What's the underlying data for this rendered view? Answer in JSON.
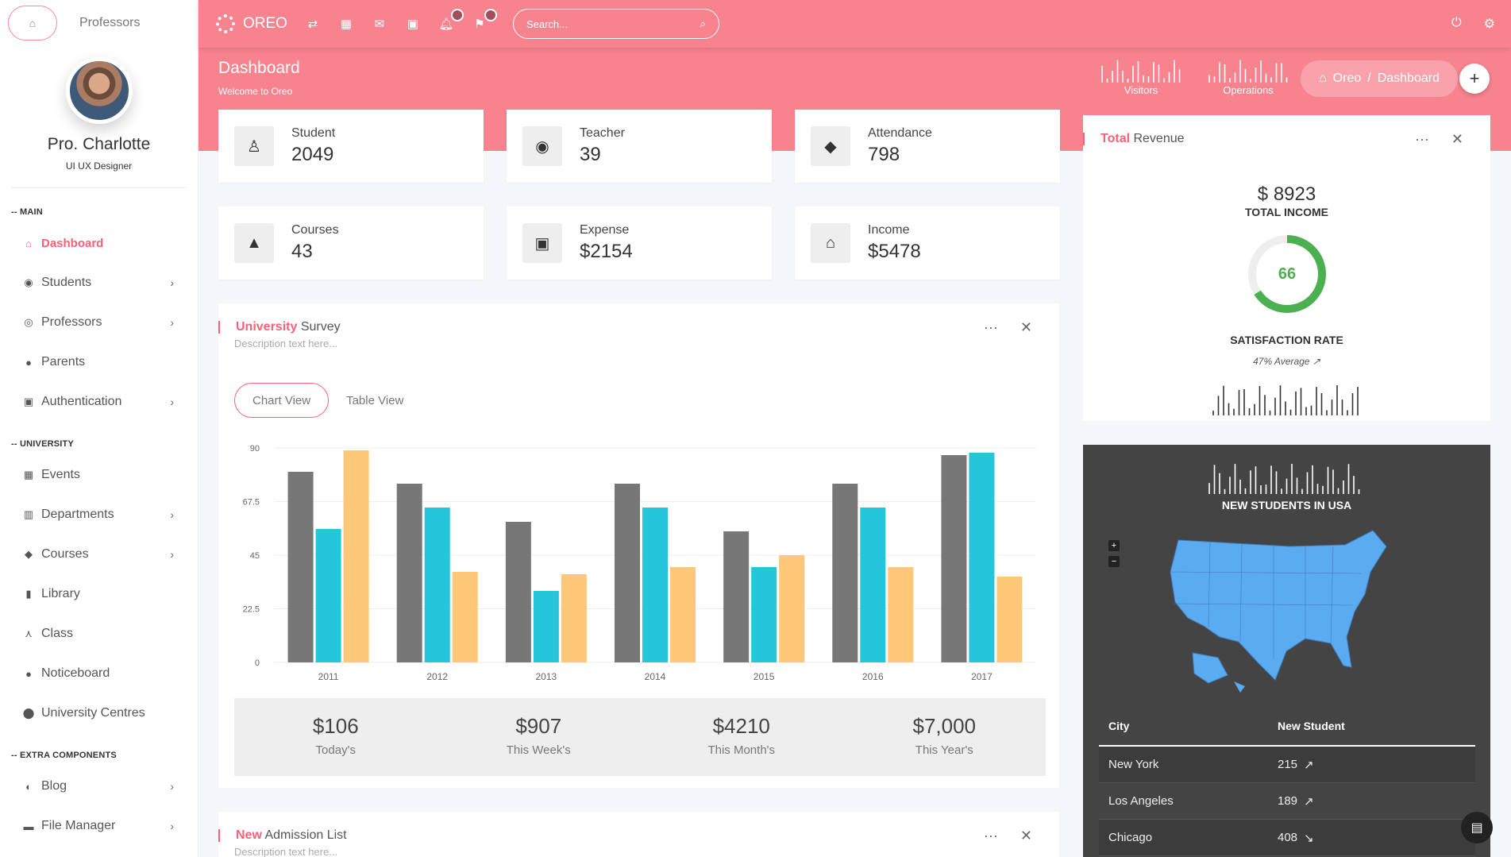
{
  "sidebar": {
    "top_label": "Professors",
    "profile": {
      "name": "Pro. Charlotte",
      "role": "UI UX Designer"
    },
    "sections": [
      {
        "header": "-- MAIN",
        "items": [
          {
            "label": "Dashboard",
            "icon": "home-icon",
            "active": true,
            "chevron": false
          },
          {
            "label": "Students",
            "icon": "users-icon",
            "chevron": true
          },
          {
            "label": "Professors",
            "icon": "group-icon",
            "chevron": true
          },
          {
            "label": "Parents",
            "icon": "person-icon",
            "chevron": false
          },
          {
            "label": "Authentication",
            "icon": "lock-icon",
            "chevron": true
          }
        ]
      },
      {
        "header": "-- UNIVERSITY",
        "items": [
          {
            "label": "Events",
            "icon": "calendar-icon",
            "chevron": false
          },
          {
            "label": "Departments",
            "icon": "building-icon",
            "chevron": true
          },
          {
            "label": "Courses",
            "icon": "graduation-cap-icon",
            "chevron": true
          },
          {
            "label": "Library",
            "icon": "book-icon",
            "chevron": false
          },
          {
            "label": "Class",
            "icon": "sitemap-icon",
            "chevron": false
          },
          {
            "label": "Noticeboard",
            "icon": "alert-icon",
            "chevron": false
          },
          {
            "label": "University Centres",
            "icon": "map-pin-icon",
            "chevron": false
          }
        ]
      },
      {
        "header": "-- EXTRA COMPONENTS",
        "items": [
          {
            "label": "Blog",
            "icon": "blog-icon",
            "chevron": true
          },
          {
            "label": "File Manager",
            "icon": "folder-icon",
            "chevron": true
          }
        ]
      }
    ]
  },
  "topbar": {
    "brand": "OREO",
    "search_placeholder": "Search..."
  },
  "header": {
    "title": "Dashboard",
    "subtitle": "Welcome to Oreo",
    "sparks": [
      {
        "label": "Visitors"
      },
      {
        "label": "Operations"
      }
    ],
    "breadcrumb": {
      "root": "Oreo",
      "sep": "/",
      "current": "Dashboard"
    }
  },
  "stats": [
    {
      "label": "Student",
      "value": "2049",
      "icon": "user-icon"
    },
    {
      "label": "Teacher",
      "value": "39",
      "icon": "account-circle-icon"
    },
    {
      "label": "Attendance",
      "value": "798",
      "icon": "tag-icon"
    },
    {
      "label": "Courses",
      "value": "43",
      "icon": "graduation-cap-icon"
    },
    {
      "label": "Expense",
      "value": "$2154",
      "icon": "wallet-icon"
    },
    {
      "label": "Income",
      "value": "$5478",
      "icon": "bank-icon"
    }
  ],
  "survey": {
    "title_accent": "University",
    "title_rest": " Survey",
    "description": "Description text here...",
    "tabs": [
      "Chart View",
      "Table View"
    ],
    "summary": [
      {
        "value": "$106",
        "label": "Today's"
      },
      {
        "value": "$907",
        "label": "This Week's"
      },
      {
        "value": "$4210",
        "label": "This Month's"
      },
      {
        "value": "$7,000",
        "label": "This Year's"
      }
    ]
  },
  "chart_data": {
    "type": "bar",
    "categories": [
      "2011",
      "2012",
      "2013",
      "2014",
      "2015",
      "2016",
      "2017"
    ],
    "series": [
      {
        "values": [
          80,
          75,
          59,
          75,
          55,
          75,
          87
        ],
        "color": "#777777"
      },
      {
        "values": [
          56,
          65,
          30,
          65,
          40,
          65,
          88
        ],
        "color": "#26c6da"
      },
      {
        "values": [
          89,
          38,
          37,
          40,
          45,
          40,
          36
        ],
        "color": "#ffc878"
      }
    ],
    "ylim": [
      0,
      90
    ],
    "yticks": [
      "0",
      "22.5",
      "45",
      "67.5",
      "90"
    ],
    "grid": true
  },
  "revenue": {
    "title_accent": "Total",
    "title_rest": " Revenue",
    "amount": "$ 8923",
    "amount_label": "TOTAL INCOME",
    "satisfaction": "66",
    "satisfaction_fraction": 0.66,
    "satisfaction_label": "SATISFACTION RATE",
    "average": "47% Average"
  },
  "map": {
    "title": "NEW STUDENTS IN USA",
    "columns": [
      "City",
      "New Student"
    ],
    "rows": [
      {
        "city": "New York",
        "count": "215",
        "trend": "up"
      },
      {
        "city": "Los Angeles",
        "count": "189",
        "trend": "up"
      },
      {
        "city": "Chicago",
        "count": "408",
        "trend": "down"
      }
    ]
  },
  "admission": {
    "title_accent": "New",
    "title_rest": " Admission List",
    "description": "Description text here..."
  },
  "colors": {
    "accent": "#f96178",
    "topbar": "#f7838f",
    "bar_gray": "#777777",
    "bar_cyan": "#26c6da",
    "bar_orange": "#ffc878",
    "donut_green": "#4caf50"
  }
}
